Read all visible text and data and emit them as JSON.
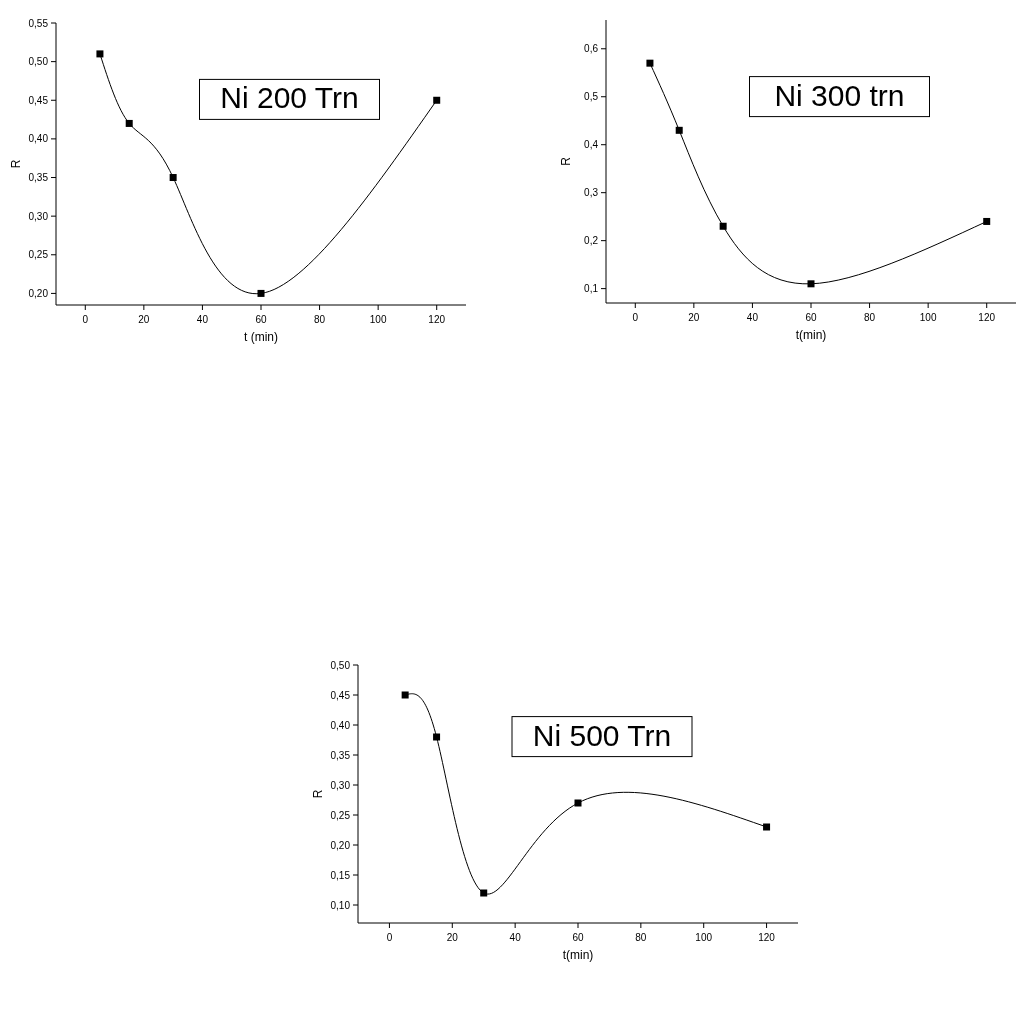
{
  "chart_data": [
    {
      "type": "line",
      "title": "Ni 200 Trn",
      "xlabel": "t (min)",
      "ylabel": "R",
      "marker": "square",
      "line_style": "solid",
      "grid": false,
      "series": [
        {
          "color": "#000000",
          "x": [
            5,
            15,
            30,
            60,
            120
          ],
          "values": [
            0.51,
            0.42,
            0.35,
            0.2,
            0.45
          ]
        }
      ],
      "xlim": [
        -10,
        130
      ],
      "xticks": [
        0,
        20,
        40,
        60,
        80,
        100,
        120
      ],
      "ylim": [
        0.185,
        0.55
      ],
      "yticks": [
        {
          "value": 0.2,
          "label": "0,20"
        },
        {
          "value": 0.25,
          "label": "0,25"
        },
        {
          "value": 0.3,
          "label": "0,30"
        },
        {
          "value": 0.35,
          "label": "0,35"
        },
        {
          "value": 0.4,
          "label": "0,40"
        },
        {
          "value": 0.45,
          "label": "0,45"
        },
        {
          "value": 0.5,
          "label": "0,50"
        },
        {
          "value": 0.55,
          "label": "0,55"
        }
      ]
    },
    {
      "type": "line",
      "title": "Ni 300 trn",
      "xlabel": "t(min)",
      "ylabel": "R",
      "marker": "square",
      "line_style": "solid",
      "grid": false,
      "series": [
        {
          "color": "#000000",
          "x": [
            5,
            15,
            30,
            60,
            120
          ],
          "values": [
            0.57,
            0.43,
            0.23,
            0.11,
            0.24
          ]
        }
      ],
      "xlim": [
        -10,
        130
      ],
      "xticks": [
        0,
        20,
        40,
        60,
        80,
        100,
        120
      ],
      "ylim": [
        0.07,
        0.66
      ],
      "yticks": [
        {
          "value": 0.1,
          "label": "0,1"
        },
        {
          "value": 0.2,
          "label": "0,2"
        },
        {
          "value": 0.3,
          "label": "0,3"
        },
        {
          "value": 0.4,
          "label": "0,4"
        },
        {
          "value": 0.5,
          "label": "0,5"
        },
        {
          "value": 0.6,
          "label": "0,6"
        }
      ]
    },
    {
      "type": "line",
      "title": "Ni 500 Trn",
      "xlabel": "t(min)",
      "ylabel": "R",
      "marker": "square",
      "line_style": "solid",
      "grid": false,
      "series": [
        {
          "color": "#000000",
          "x": [
            5,
            15,
            30,
            60,
            120
          ],
          "values": [
            0.45,
            0.38,
            0.12,
            0.27,
            0.23
          ]
        }
      ],
      "xlim": [
        -10,
        130
      ],
      "xticks": [
        0,
        20,
        40,
        60,
        80,
        100,
        120
      ],
      "ylim": [
        0.07,
        0.5
      ],
      "yticks": [
        {
          "value": 0.1,
          "label": "0,10"
        },
        {
          "value": 0.15,
          "label": "0,15"
        },
        {
          "value": 0.2,
          "label": "0,20"
        },
        {
          "value": 0.25,
          "label": "0,25"
        },
        {
          "value": 0.3,
          "label": "0,30"
        },
        {
          "value": 0.35,
          "label": "0,35"
        },
        {
          "value": 0.4,
          "label": "0,40"
        },
        {
          "value": 0.45,
          "label": "0,45"
        },
        {
          "value": 0.5,
          "label": "0,50"
        }
      ]
    }
  ]
}
